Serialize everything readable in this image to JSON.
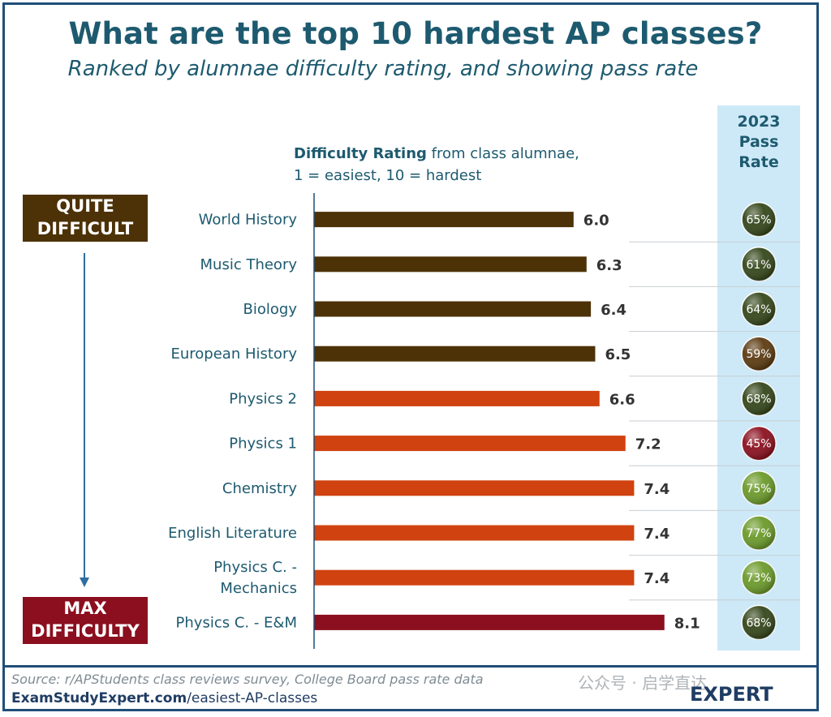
{
  "header": {
    "title": "What are the top 10 hardest AP classes?",
    "subtitle": "Ranked by alumnae difficulty rating, and showing pass rate"
  },
  "axis_note": {
    "bold": "Difficulty Rating",
    "rest_line1": " from class alumnae,",
    "line2": "1 = easiest, 10 = hardest"
  },
  "pass_rate_header": {
    "line1": "2023",
    "line2": "Pass",
    "line3": "Rate"
  },
  "tags": {
    "quite_line1": "QUITE",
    "quite_line2": "DIFFICULT",
    "max_line1": "MAX",
    "max_line2": "DIFFICULTY"
  },
  "footer": {
    "source": "Source: r/APStudents class reviews survey, College Board pass rate data",
    "url_bold": "ExamStudyExpert.com",
    "url_rest": "/easiest-AP-classes",
    "watermark": "公众号 · 启学直达",
    "logo": "EXPERT"
  },
  "chart_data": {
    "type": "bar",
    "orientation": "horizontal",
    "title": "What are the top 10 hardest AP classes?",
    "xlabel": "Difficulty Rating from class alumnae, 1 = easiest, 10 = hardest",
    "categories": [
      [
        "World History"
      ],
      [
        "Music Theory"
      ],
      [
        "Biology"
      ],
      [
        "European History"
      ],
      [
        "Physics 2"
      ],
      [
        "Physics 1"
      ],
      [
        "Chemistry"
      ],
      [
        "English Literature"
      ],
      [
        "Physics C. -",
        "Mechanics"
      ],
      [
        "Physics C. - E&M"
      ]
    ],
    "values": [
      6.0,
      6.3,
      6.4,
      6.5,
      6.6,
      7.2,
      7.4,
      7.4,
      7.4,
      8.1
    ],
    "value_labels": [
      "6.0",
      "6.3",
      "6.4",
      "6.5",
      "6.6",
      "7.2",
      "7.4",
      "7.4",
      "7.4",
      "8.1"
    ],
    "xlim": [
      0,
      10
    ],
    "bar_colors": [
      "#4d3208",
      "#4d3208",
      "#4d3208",
      "#4d3208",
      "#d0420f",
      "#d0420f",
      "#d0420f",
      "#d0420f",
      "#d0420f",
      "#8b0f1e"
    ],
    "pass_rates": [
      "65%",
      "61%",
      "64%",
      "59%",
      "68%",
      "45%",
      "75%",
      "77%",
      "73%",
      "68%"
    ],
    "pass_rate_colors": [
      "#34461a",
      "#34461a",
      "#34461a",
      "#5b3a10",
      "#34461a",
      "#8b0f1e",
      "#6b9a2a",
      "#6b9a2a",
      "#6b9a2a",
      "#34461a"
    ]
  }
}
